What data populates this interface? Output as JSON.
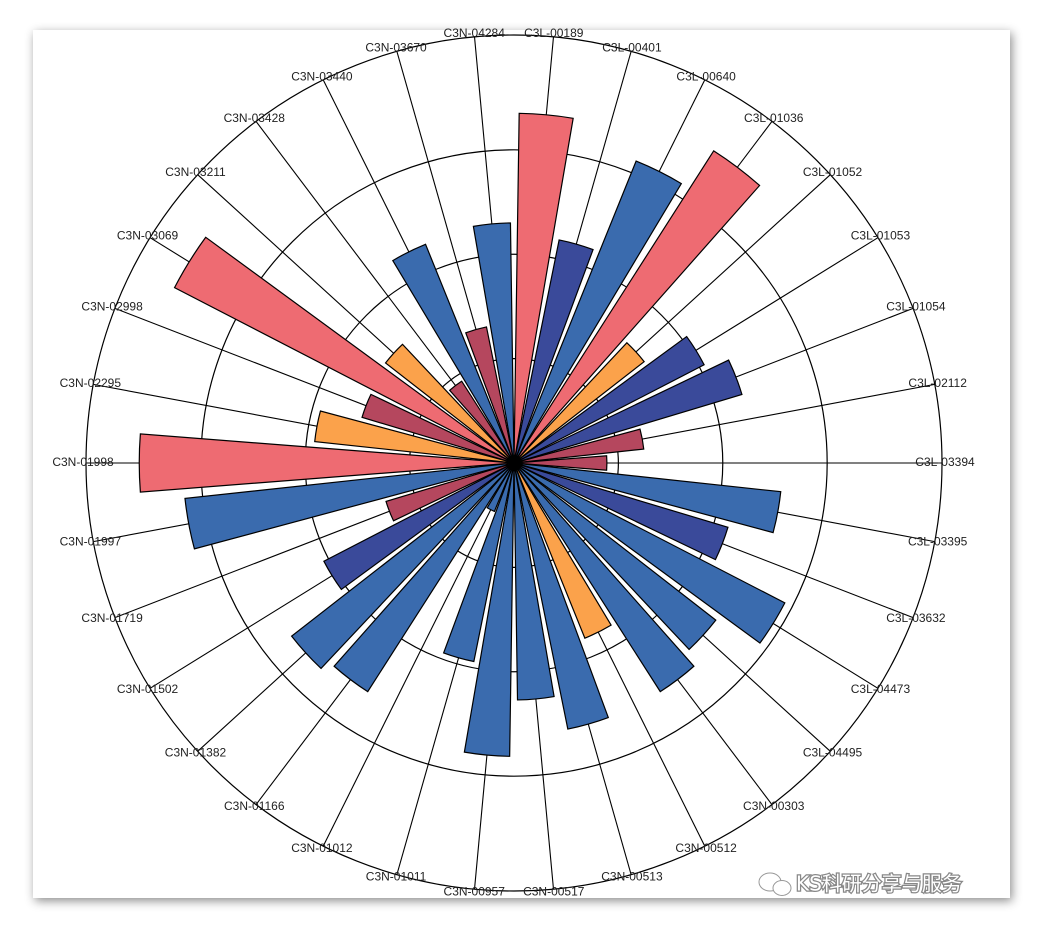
{
  "chart_data": {
    "type": "polar-bar",
    "categories": [
      "C3L-00189",
      "C3L-00401",
      "C3L-00640",
      "C3L-01036",
      "C3L-01052",
      "C3L-01053",
      "C3L-01054",
      "C3L-02112",
      "C3L-03394",
      "C3L-03395",
      "C3L-03632",
      "C3L-04473",
      "C3L-04495",
      "C3N-00303",
      "C3N-00512",
      "C3N-00513",
      "C3N-00517",
      "C3N-00957",
      "C3N-01011",
      "C3N-01012",
      "C3N-01166",
      "C3N-01382",
      "C3N-01502",
      "C3N-01719",
      "C3N-01997",
      "C3N-01998",
      "C3N-02295",
      "C3N-02998",
      "C3N-03069",
      "C3N-03211",
      "C3N-03428",
      "C3N-03440",
      "C3N-03670",
      "C3N-04284"
    ],
    "values": [
      3.35,
      2.18,
      3.12,
      3.55,
      1.58,
      2.05,
      2.28,
      1.25,
      0.89,
      2.57,
      2.14,
      2.92,
      2.45,
      2.6,
      1.81,
      2.6,
      2.27,
      2.81,
      1.94,
      0.5,
      2.6,
      2.7,
      2.05,
      1.28,
      3.17,
      3.59,
      1.92,
      1.52,
      3.66,
      1.56,
      0.93,
      2.26,
      1.33,
      2.3
    ],
    "colors": [
      "#ee6b72",
      "#3a4a9a",
      "#3a6bae",
      "#ee6b72",
      "#fba24b",
      "#3a4a9a",
      "#3a4a9a",
      "#b5475e",
      "#b5475e",
      "#3a6bae",
      "#3a4a9a",
      "#3a6bae",
      "#3a6bae",
      "#3a6bae",
      "#fba24b",
      "#3a6bae",
      "#3a6bae",
      "#3a6bae",
      "#3a6bae",
      "#3a6bae",
      "#3a6bae",
      "#3a6bae",
      "#3a4a9a",
      "#b5475e",
      "#3a6bae",
      "#ee6b72",
      "#fba24b",
      "#b5475e",
      "#ee6b72",
      "#fba24b",
      "#b5475e",
      "#3a6bae",
      "#b5475e",
      "#3a6bae"
    ],
    "ylim": [
      0,
      4.1
    ],
    "yticks": [
      1,
      2,
      3
    ]
  },
  "watermark": "KS科研分享与服务"
}
